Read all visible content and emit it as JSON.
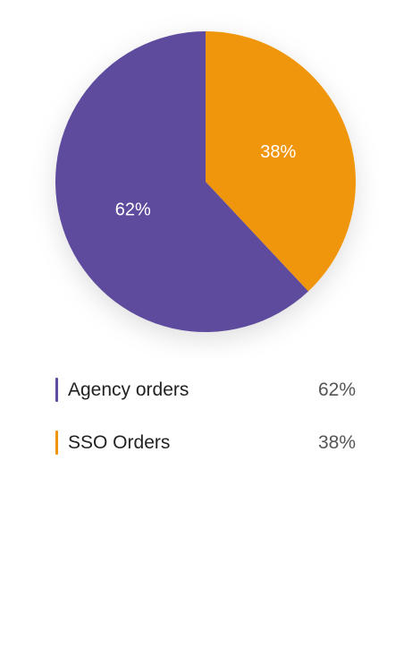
{
  "chart_data": {
    "type": "pie",
    "categories": [
      "Agency orders",
      "SSO Orders"
    ],
    "values": [
      62,
      38
    ],
    "colors": [
      "#5e4c9e",
      "#f0960c"
    ],
    "slice_labels": [
      "62%",
      "38%"
    ],
    "title": "",
    "legend_position": "bottom"
  },
  "legend": {
    "items": [
      {
        "label": "Agency orders",
        "value": "62%",
        "color": "#5e4c9e"
      },
      {
        "label": "SSO Orders",
        "value": "38%",
        "color": "#f0960c"
      }
    ]
  }
}
